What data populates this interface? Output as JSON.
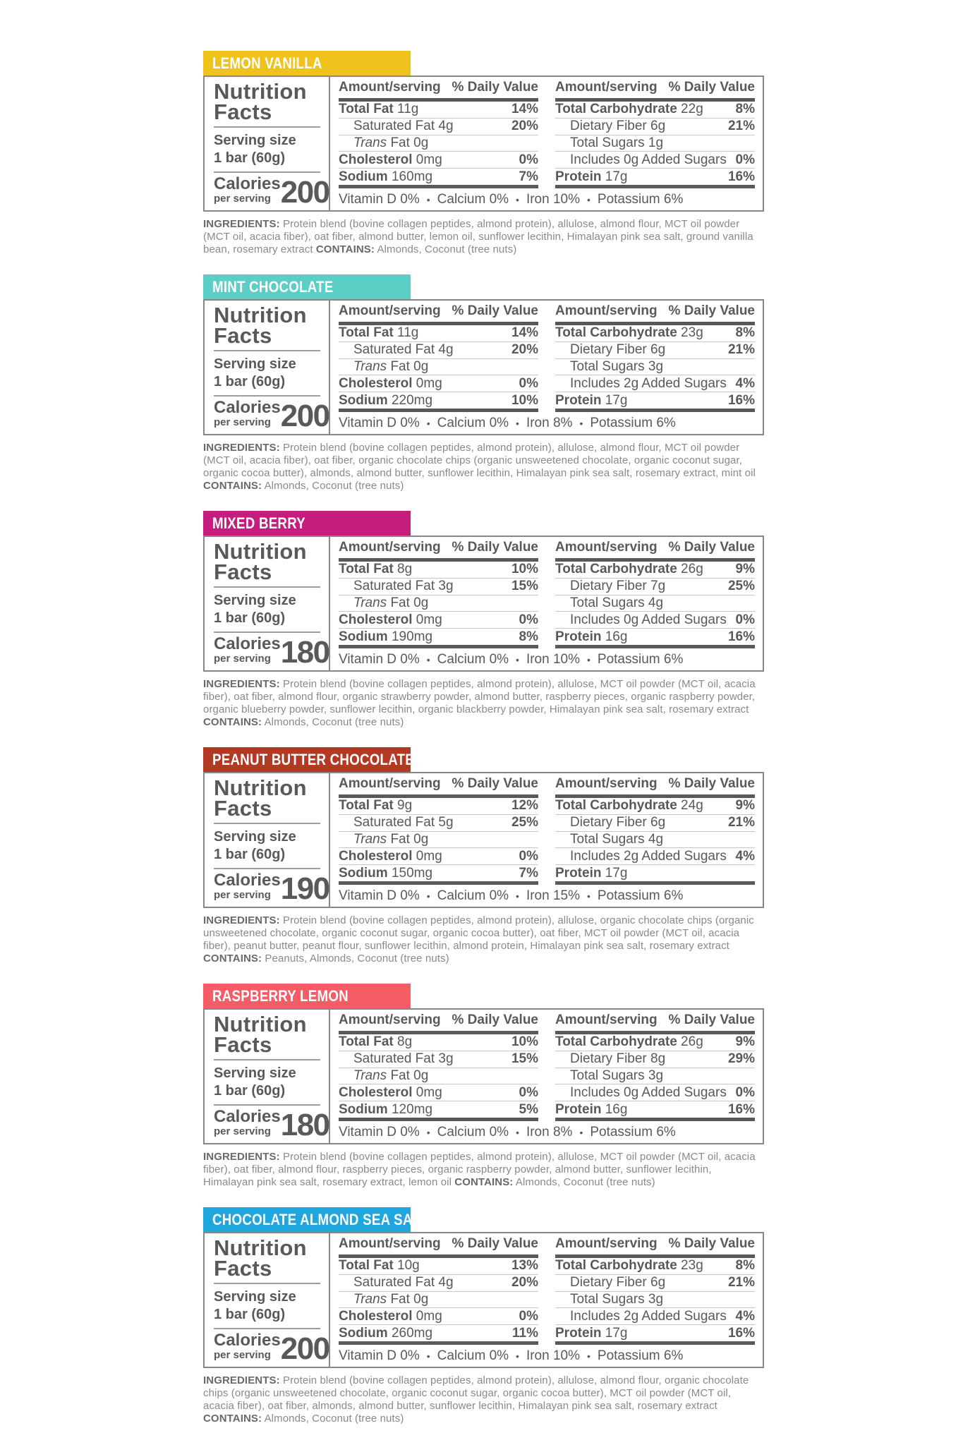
{
  "page": {
    "background": "#ffffff",
    "text_color": "#58595b"
  },
  "shared": {
    "title1": "Nutrition",
    "title2": "Facts",
    "serving_size_label": "Serving size",
    "serving_size_value": "1 bar (60g)",
    "calories_label": "Calories",
    "calories_sublabel": "per serving",
    "col_header_amount": "Amount/serving",
    "col_header_dv": "% Daily Value",
    "ingredients_label": "INGREDIENTS:",
    "contains_label": "CONTAINS:"
  },
  "labels": [
    {
      "flavor": "LEMON VANILLA",
      "color": "#EFC31B",
      "calories": "200",
      "col1": [
        {
          "name": "Total Fat",
          "amount": "11g",
          "dv": "14%",
          "style": "major"
        },
        {
          "name": "Saturated Fat",
          "amount": "4g",
          "dv": "20%",
          "style": "indent"
        },
        {
          "name": "Trans Fat",
          "amount": "0g",
          "dv": "",
          "style": "indent",
          "italic": true
        },
        {
          "name": "Cholesterol",
          "amount": "0mg",
          "dv": "0%",
          "style": "major"
        },
        {
          "name": "Sodium",
          "amount": "160mg",
          "dv": "7%",
          "style": "major"
        }
      ],
      "col2": [
        {
          "name": "Total Carbohydrate",
          "amount": "22g",
          "dv": "8%",
          "style": "major"
        },
        {
          "name": "Dietary Fiber",
          "amount": "6g",
          "dv": "21%",
          "style": "indent"
        },
        {
          "name": "Total Sugars",
          "amount": "1g",
          "dv": "",
          "style": "indent"
        },
        {
          "name": "Includes 0g Added Sugars",
          "amount": "",
          "dv": "0%",
          "style": "indent"
        },
        {
          "name": "Protein",
          "amount": "17g",
          "dv": "16%",
          "style": "major"
        }
      ],
      "vitamins": [
        "Vitamin D 0%",
        "Calcium 0%",
        "Iron 10%",
        "Potassium 6%"
      ],
      "ingredients": "Protein blend (bovine collagen peptides, almond protein), allulose, almond flour, MCT oil powder (MCT oil, acacia fiber), oat fiber, almond butter, lemon oil, sunflower lecithin, Himalayan pink sea salt, ground vanilla bean, rosemary extract ",
      "contains": "Almonds, Coconut (tree nuts)"
    },
    {
      "flavor": "MINT CHOCOLATE",
      "color": "#5BCFC5",
      "calories": "200",
      "col1": [
        {
          "name": "Total Fat",
          "amount": "11g",
          "dv": "14%",
          "style": "major"
        },
        {
          "name": "Saturated Fat",
          "amount": "4g",
          "dv": "20%",
          "style": "indent"
        },
        {
          "name": "Trans Fat",
          "amount": "0g",
          "dv": "",
          "style": "indent",
          "italic": true
        },
        {
          "name": "Cholesterol",
          "amount": "0mg",
          "dv": "0%",
          "style": "major"
        },
        {
          "name": "Sodium",
          "amount": "220mg",
          "dv": "10%",
          "style": "major"
        }
      ],
      "col2": [
        {
          "name": "Total Carbohydrate",
          "amount": "23g",
          "dv": "8%",
          "style": "major"
        },
        {
          "name": "Dietary Fiber",
          "amount": "6g",
          "dv": "21%",
          "style": "indent"
        },
        {
          "name": "Total Sugars",
          "amount": "3g",
          "dv": "",
          "style": "indent"
        },
        {
          "name": "Includes 2g Added Sugars",
          "amount": "",
          "dv": "4%",
          "style": "indent"
        },
        {
          "name": "Protein",
          "amount": "17g",
          "dv": "16%",
          "style": "major"
        }
      ],
      "vitamins": [
        "Vitamin D 0%",
        "Calcium 0%",
        "Iron 8%",
        "Potassium 6%"
      ],
      "ingredients": "Protein blend (bovine collagen peptides, almond protein), allulose, almond flour, MCT oil powder (MCT oil, acacia fiber), oat fiber, organic chocolate chips (organic unsweetened chocolate, organic coconut sugar, organic cocoa butter), almonds, almond butter, sunflower lecithin, Himalayan pink sea salt, rosemary extract, mint oil  ",
      "contains": "Almonds, Coconut (tree nuts)"
    },
    {
      "flavor": "MIXED BERRY",
      "color": "#C51C7D",
      "calories": "180",
      "col1": [
        {
          "name": "Total Fat",
          "amount": "8g",
          "dv": "10%",
          "style": "major"
        },
        {
          "name": "Saturated Fat",
          "amount": "3g",
          "dv": "15%",
          "style": "indent"
        },
        {
          "name": "Trans Fat",
          "amount": "0g",
          "dv": "",
          "style": "indent",
          "italic": true
        },
        {
          "name": "Cholesterol",
          "amount": "0mg",
          "dv": "0%",
          "style": "major"
        },
        {
          "name": "Sodium",
          "amount": "190mg",
          "dv": "8%",
          "style": "major"
        }
      ],
      "col2": [
        {
          "name": "Total Carbohydrate",
          "amount": "26g",
          "dv": "9%",
          "style": "major"
        },
        {
          "name": "Dietary Fiber",
          "amount": "7g",
          "dv": "25%",
          "style": "indent"
        },
        {
          "name": "Total Sugars",
          "amount": "4g",
          "dv": "",
          "style": "indent"
        },
        {
          "name": "Includes 0g Added Sugars",
          "amount": "",
          "dv": "0%",
          "style": "indent"
        },
        {
          "name": "Protein",
          "amount": "16g",
          "dv": "16%",
          "style": "major"
        }
      ],
      "vitamins": [
        "Vitamin D 0%",
        "Calcium 0%",
        "Iron 10%",
        "Potassium 6%"
      ],
      "ingredients": "Protein blend (bovine collagen peptides, almond protein), allulose, MCT oil powder (MCT oil, acacia fiber), oat fiber, almond flour, organic strawberry powder, almond butter, raspberry pieces, organic raspberry powder, organic blueberry powder, sunflower lecithin, organic blackberry powder, Himalayan pink sea salt, rosemary extract ",
      "contains": "Almonds, Coconut (tree nuts)"
    },
    {
      "flavor": "PEANUT BUTTER CHOCOLATE",
      "color": "#B23A25",
      "calories": "190",
      "col1": [
        {
          "name": "Total Fat",
          "amount": "9g",
          "dv": "12%",
          "style": "major"
        },
        {
          "name": "Saturated Fat",
          "amount": "5g",
          "dv": "25%",
          "style": "indent"
        },
        {
          "name": "Trans Fat",
          "amount": "0g",
          "dv": "",
          "style": "indent",
          "italic": true
        },
        {
          "name": "Cholesterol",
          "amount": "0mg",
          "dv": "0%",
          "style": "major"
        },
        {
          "name": "Sodium",
          "amount": "150mg",
          "dv": "7%",
          "style": "major"
        }
      ],
      "col2": [
        {
          "name": "Total Carbohydrate",
          "amount": "24g",
          "dv": "9%",
          "style": "major"
        },
        {
          "name": "Dietary Fiber",
          "amount": "6g",
          "dv": "21%",
          "style": "indent"
        },
        {
          "name": "Total Sugars",
          "amount": "4g",
          "dv": "",
          "style": "indent"
        },
        {
          "name": "Includes 2g Added Sugars",
          "amount": "",
          "dv": "4%",
          "style": "indent"
        },
        {
          "name": "Protein",
          "amount": "17g",
          "dv": "",
          "style": "major"
        }
      ],
      "vitamins": [
        "Vitamin D 0%",
        "Calcium 0%",
        "Iron 15%",
        "Potassium 6%"
      ],
      "ingredients": "Protein blend (bovine collagen peptides, almond protein), allulose, organic chocolate chips (organic unsweetened chocolate, organic coconut sugar, organic cocoa butter), oat fiber, MCT oil powder (MCT oil, acacia fiber), peanut butter, peanut flour, sunflower lecithin, almond protein, Himalayan pink sea salt, rosemary extract  ",
      "contains": "Peanuts, Almonds, Coconut (tree nuts)"
    },
    {
      "flavor": "RASPBERRY LEMON",
      "color": "#F55C65",
      "calories": "180",
      "col1": [
        {
          "name": "Total Fat",
          "amount": "8g",
          "dv": "10%",
          "style": "major"
        },
        {
          "name": "Saturated Fat",
          "amount": "3g",
          "dv": "15%",
          "style": "indent"
        },
        {
          "name": "Trans Fat",
          "amount": "0g",
          "dv": "",
          "style": "indent",
          "italic": true
        },
        {
          "name": "Cholesterol",
          "amount": "0mg",
          "dv": "0%",
          "style": "major"
        },
        {
          "name": "Sodium",
          "amount": "120mg",
          "dv": "5%",
          "style": "major"
        }
      ],
      "col2": [
        {
          "name": "Total Carbohydrate",
          "amount": "26g",
          "dv": "9%",
          "style": "major"
        },
        {
          "name": "Dietary Fiber",
          "amount": "8g",
          "dv": "29%",
          "style": "indent"
        },
        {
          "name": "Total Sugars",
          "amount": "3g",
          "dv": "",
          "style": "indent"
        },
        {
          "name": "Includes 0g Added Sugars",
          "amount": "",
          "dv": "0%",
          "style": "indent"
        },
        {
          "name": "Protein",
          "amount": "16g",
          "dv": "16%",
          "style": "major"
        }
      ],
      "vitamins": [
        "Vitamin D 0%",
        "Calcium 0%",
        "Iron 8%",
        "Potassium 6%"
      ],
      "ingredients": "Protein blend (bovine collagen peptides, almond protein), allulose, MCT oil powder (MCT oil, acacia fiber), oat fiber, almond flour, raspberry pieces, organic raspberry powder, almond butter, sunflower lecithin, Himalayan pink sea salt, rosemary extract, lemon oil ",
      "contains": "Almonds, Coconut (tree nuts)"
    },
    {
      "flavor": "CHOCOLATE ALMOND SEA SALT",
      "color": "#1FA6DE",
      "calories": "200",
      "col1": [
        {
          "name": "Total Fat",
          "amount": "10g",
          "dv": "13%",
          "style": "major"
        },
        {
          "name": "Saturated Fat",
          "amount": "4g",
          "dv": "20%",
          "style": "indent"
        },
        {
          "name": "Trans Fat",
          "amount": "0g",
          "dv": "",
          "style": "indent",
          "italic": true
        },
        {
          "name": "Cholesterol",
          "amount": "0mg",
          "dv": "0%",
          "style": "major"
        },
        {
          "name": "Sodium",
          "amount": "260mg",
          "dv": "11%",
          "style": "major"
        }
      ],
      "col2": [
        {
          "name": "Total Carbohydrate",
          "amount": "23g",
          "dv": "8%",
          "style": "major"
        },
        {
          "name": "Dietary Fiber",
          "amount": "6g",
          "dv": "21%",
          "style": "indent"
        },
        {
          "name": "Total Sugars",
          "amount": "3g",
          "dv": "",
          "style": "indent"
        },
        {
          "name": "Includes 2g Added Sugars",
          "amount": "",
          "dv": "4%",
          "style": "indent"
        },
        {
          "name": "Protein",
          "amount": "17g",
          "dv": "16%",
          "style": "major"
        }
      ],
      "vitamins": [
        "Vitamin D 0%",
        "Calcium 0%",
        "Iron 10%",
        "Potassium 6%"
      ],
      "ingredients": "Protein blend (bovine collagen peptides, almond protein), allulose, almond flour, organic chocolate chips (organic unsweetened chocolate, organic coconut sugar, organic cocoa butter), MCT oil powder (MCT oil, acacia fiber), oat fiber, almonds, almond butter, sunflower lecithin, Himalayan pink sea salt, rosemary extract ",
      "contains": "Almonds, Coconut (tree nuts)"
    }
  ]
}
